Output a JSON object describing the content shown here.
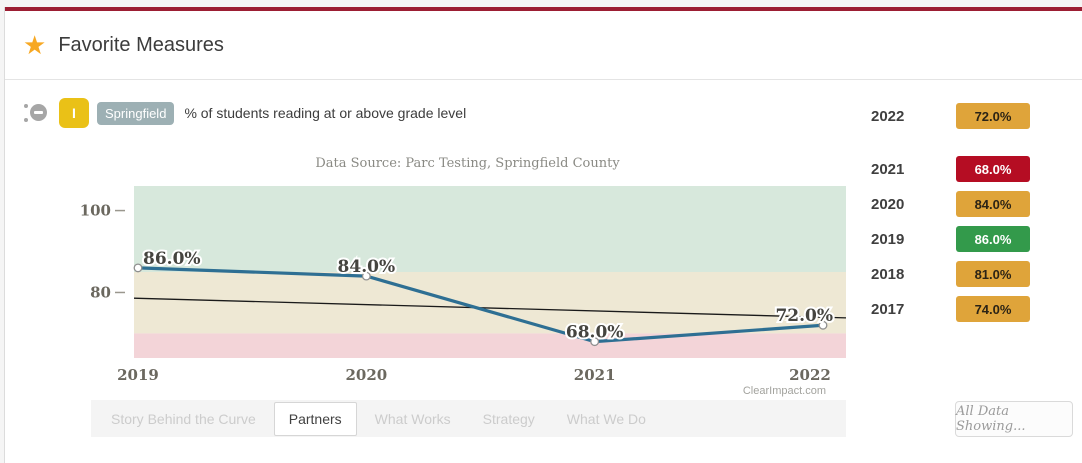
{
  "page": {
    "top_bar_color": "#9c1e33",
    "background": "#f5f5f5"
  },
  "header": {
    "title": "Favorite Measures",
    "star_color": "#f7a823"
  },
  "measure": {
    "initial": "I",
    "initial_bg": "#eac117",
    "tag": "Springfield",
    "tag_bg": "#9db0b4",
    "title": "% of students reading at or above grade level"
  },
  "chart_data": {
    "type": "line",
    "title": "Data Source: Parc Testing, Springfield County",
    "x": [
      "2019",
      "2020",
      "2021",
      "2022"
    ],
    "values": [
      86.0,
      84.0,
      68.0,
      72.0
    ],
    "point_labels": [
      "86.0%",
      "84.0%",
      "68.0%",
      "72.0%"
    ],
    "ylim": [
      64,
      106
    ],
    "yticks": [
      80,
      100
    ],
    "bands": [
      {
        "from": 85,
        "to": 106,
        "color": "#d7e8dc",
        "meaning": "above-target-green"
      },
      {
        "from": 70,
        "to": 85,
        "color": "#eee8d4",
        "meaning": "caution-yellow"
      },
      {
        "from": 64,
        "to": 70,
        "color": "#f3d4d8",
        "meaning": "below-target-red"
      }
    ],
    "trend_line": {
      "start": 78.6,
      "end": 73.8,
      "color": "#1a1a1a"
    },
    "line_color": "#2e6f93",
    "marker": {
      "fill": "#ffffff",
      "stroke": "#8f8f8f"
    },
    "watermark": "ClearImpact.com",
    "legend_position": "none",
    "grid": false
  },
  "values_panel": {
    "rows": [
      {
        "year": "2022",
        "value": "72.0%",
        "color": "#dfa43a",
        "text_color": "#2b2315"
      },
      {
        "year": "2021",
        "value": "68.0%",
        "color": "#b50d23",
        "text_color": "#ffffff"
      },
      {
        "year": "2020",
        "value": "84.0%",
        "color": "#dfa43a",
        "text_color": "#2b2315"
      },
      {
        "year": "2019",
        "value": "86.0%",
        "color": "#339a4b",
        "text_color": "#ffffff"
      },
      {
        "year": "2018",
        "value": "81.0%",
        "color": "#dfa43a",
        "text_color": "#2b2315"
      },
      {
        "year": "2017",
        "value": "74.0%",
        "color": "#dfa43a",
        "text_color": "#2b2315"
      }
    ]
  },
  "tabs": {
    "items": [
      {
        "label": "Story Behind the Curve",
        "active": false
      },
      {
        "label": "Partners",
        "active": true
      },
      {
        "label": "What Works",
        "active": false
      },
      {
        "label": "Strategy",
        "active": false
      },
      {
        "label": "What We Do",
        "active": false
      }
    ]
  },
  "footer": {
    "all_data_label": "All Data Showing..."
  }
}
